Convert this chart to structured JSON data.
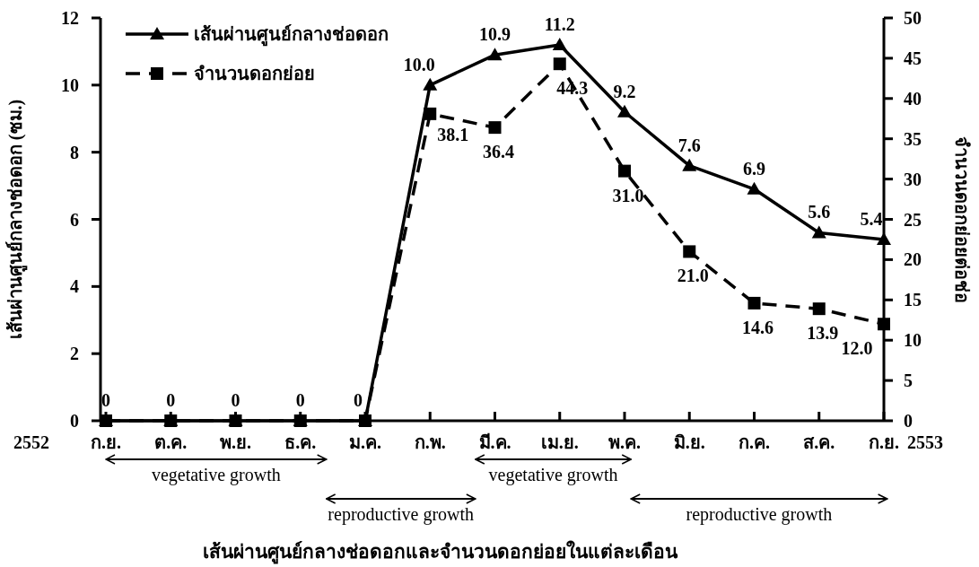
{
  "chart_data": {
    "type": "line",
    "xlabel": "เส้นผ่านศูนย์กลางช่อดอกและจำนวนดอกย่อยในแต่ละเดือน",
    "ylabel": "เส้นผ่านศูนย์กลางช่อดอก (ซม.)",
    "y2label": "จำนวนดอกย่อยต่อช่อ",
    "categories": [
      "ก.ย.",
      "ต.ค.",
      "พ.ย.",
      "ธ.ค.",
      "ม.ค.",
      "ก.พ.",
      "มี.ค.",
      "เม.ย.",
      "พ.ค.",
      "มิ.ย.",
      "ก.ค.",
      "ส.ค.",
      "ก.ย."
    ],
    "series": [
      {
        "name": "เส้นผ่านศูนย์กลางช่อดอก",
        "color": "#000000",
        "marker": "triangle",
        "line_style": "solid",
        "values": [
          0,
          0,
          0,
          0,
          0,
          10.0,
          10.9,
          11.2,
          9.2,
          7.6,
          6.9,
          5.6,
          5.4
        ],
        "value_labels": [
          "0",
          "0",
          "0",
          "0",
          "0",
          "10.0",
          "10.9",
          "11.2",
          "9.2",
          "7.6",
          "6.9",
          "5.6",
          "5.4"
        ]
      },
      {
        "name": "จำนวนดอกย่อย",
        "color": "#000000",
        "marker": "square",
        "line_style": "dashed",
        "axis": "y2",
        "values": [
          0,
          0,
          0,
          0,
          0,
          38.1,
          36.4,
          44.3,
          31.0,
          21.0,
          14.6,
          13.9,
          12.0
        ],
        "value_labels": [
          null,
          null,
          null,
          null,
          null,
          "38.1",
          "36.4",
          "44.3",
          "31.0",
          "21.0",
          "14.6",
          "13.9",
          "12.0"
        ]
      }
    ],
    "ylim": [
      0,
      12
    ],
    "yticks": [
      0,
      2,
      4,
      6,
      8,
      10,
      12
    ],
    "y2lim": [
      0,
      50
    ],
    "y2ticks": [
      0,
      5,
      10,
      15,
      20,
      25,
      30,
      35,
      40,
      45,
      50
    ],
    "annotations": [
      "2552",
      "2553",
      "vegetative growth",
      "reproductive growth",
      "vegetative growth",
      "reproductive growth"
    ],
    "legend": "top left",
    "grid": false
  }
}
